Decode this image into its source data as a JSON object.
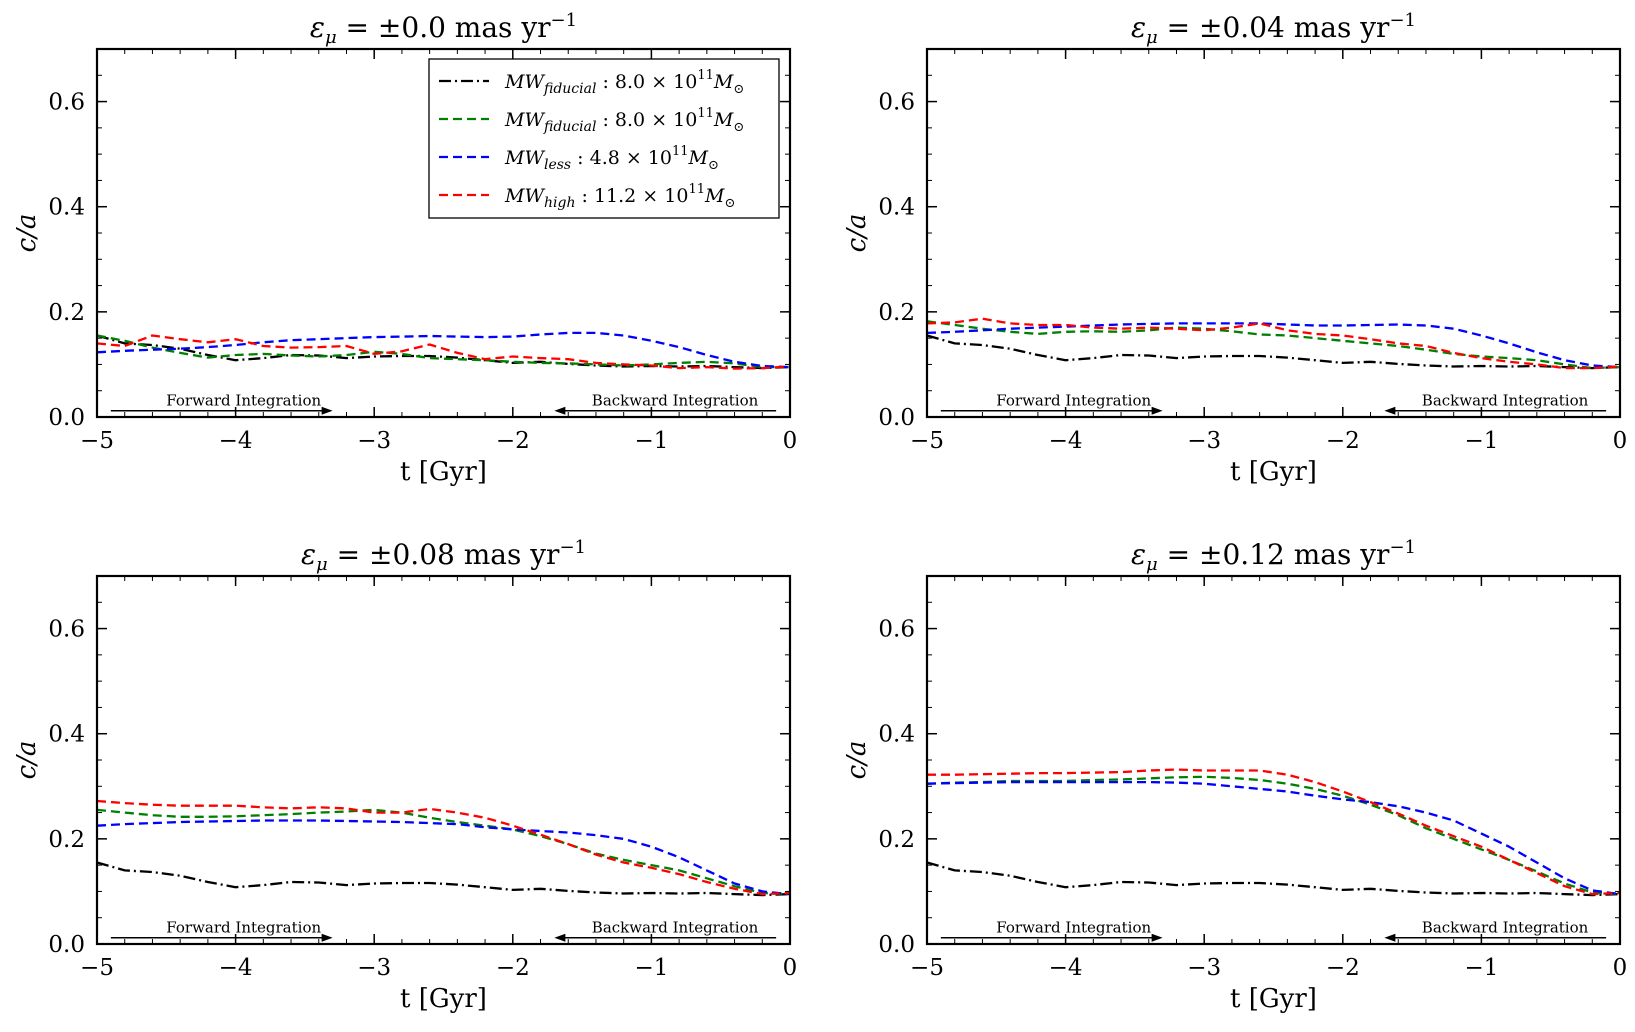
{
  "figure": {
    "legend": {
      "placement": "upper-right of first panel",
      "entries": [
        {
          "label": "MW",
          "sub": "fiducial",
          "rest": " : 8.0 × 10",
          "exp": "11",
          "unit": "M",
          "unit_sub": "⊙",
          "color": "#000000",
          "style": "dashdot"
        },
        {
          "label": "MW",
          "sub": "fiducial",
          "rest": " : 8.0 × 10",
          "exp": "11",
          "unit": "M",
          "unit_sub": "⊙",
          "color": "#008000",
          "style": "dashed"
        },
        {
          "label": "MW",
          "sub": "less",
          "rest": " : 4.8 × 10",
          "exp": "11",
          "unit": "M",
          "unit_sub": "⊙",
          "color": "#0000ff",
          "style": "dashed"
        },
        {
          "label": "MW",
          "sub": "high",
          "rest": " : 11.2 × 10",
          "exp": "11",
          "unit": "M",
          "unit_sub": "⊙",
          "color": "#ff0000",
          "style": "dashed"
        }
      ]
    },
    "annotations": {
      "forward": "Forward Integration",
      "backward": "Backward Integration"
    }
  },
  "chart_data": [
    {
      "type": "line",
      "title_prefix": "ε",
      "title_sub": "μ",
      "title_main": " = ±0.0 mas yr",
      "title_sup": "−1",
      "xlabel": "t [Gyr]",
      "ylabel": "c/a",
      "xlim": [
        -5,
        0
      ],
      "ylim": [
        0,
        0.7
      ],
      "xticks": [
        -5,
        -4,
        -3,
        -2,
        -1,
        0
      ],
      "xtick_labels": [
        "−5",
        "−4",
        "−3",
        "−2",
        "−1",
        "0"
      ],
      "yticks": [
        0.0,
        0.2,
        0.4,
        0.6
      ],
      "ytick_labels": [
        "0.0",
        "0.2",
        "0.4",
        "0.6"
      ],
      "grid": false,
      "x": [
        -5.0,
        -4.8,
        -4.6,
        -4.4,
        -4.2,
        -4.0,
        -3.8,
        -3.6,
        -3.4,
        -3.2,
        -3.0,
        -2.8,
        -2.6,
        -2.4,
        -2.2,
        -2.0,
        -1.8,
        -1.6,
        -1.4,
        -1.2,
        -1.0,
        -0.8,
        -0.6,
        -0.4,
        -0.2,
        0.0
      ],
      "series": [
        {
          "color": "#000000",
          "style": "dashdot",
          "values": [
            0.155,
            0.14,
            0.137,
            0.13,
            0.118,
            0.108,
            0.112,
            0.118,
            0.117,
            0.112,
            0.115,
            0.116,
            0.116,
            0.113,
            0.108,
            0.103,
            0.105,
            0.101,
            0.098,
            0.096,
            0.097,
            0.096,
            0.097,
            0.095,
            0.093,
            0.095
          ]
        },
        {
          "color": "#008000",
          "style": "dashed",
          "values": [
            0.155,
            0.145,
            0.132,
            0.122,
            0.113,
            0.118,
            0.12,
            0.117,
            0.115,
            0.118,
            0.124,
            0.12,
            0.112,
            0.11,
            0.108,
            0.105,
            0.103,
            0.102,
            0.1,
            0.098,
            0.1,
            0.103,
            0.105,
            0.102,
            0.095,
            0.095
          ]
        },
        {
          "color": "#0000ff",
          "style": "dashed",
          "values": [
            0.123,
            0.126,
            0.128,
            0.13,
            0.133,
            0.137,
            0.142,
            0.146,
            0.148,
            0.15,
            0.152,
            0.153,
            0.154,
            0.153,
            0.152,
            0.153,
            0.157,
            0.16,
            0.16,
            0.155,
            0.145,
            0.133,
            0.118,
            0.105,
            0.097,
            0.095
          ]
        },
        {
          "color": "#ff0000",
          "style": "dashed",
          "values": [
            0.14,
            0.135,
            0.155,
            0.148,
            0.142,
            0.148,
            0.135,
            0.132,
            0.133,
            0.135,
            0.12,
            0.125,
            0.138,
            0.122,
            0.11,
            0.115,
            0.112,
            0.11,
            0.103,
            0.1,
            0.098,
            0.093,
            0.095,
            0.092,
            0.093,
            0.096
          ]
        }
      ],
      "annotations": [
        "Forward Integration",
        "Backward Integration"
      ]
    },
    {
      "type": "line",
      "title_prefix": "ε",
      "title_sub": "μ",
      "title_main": " = ±0.04 mas yr",
      "title_sup": "−1",
      "xlabel": "t [Gyr]",
      "ylabel": "c/a",
      "xlim": [
        -5,
        0
      ],
      "ylim": [
        0,
        0.7
      ],
      "xticks": [
        -5,
        -4,
        -3,
        -2,
        -1,
        0
      ],
      "xtick_labels": [
        "−5",
        "−4",
        "−3",
        "−2",
        "−1",
        "0"
      ],
      "yticks": [
        0.0,
        0.2,
        0.4,
        0.6
      ],
      "ytick_labels": [
        "0.0",
        "0.2",
        "0.4",
        "0.6"
      ],
      "grid": false,
      "x": [
        -5.0,
        -4.8,
        -4.6,
        -4.4,
        -4.2,
        -4.0,
        -3.8,
        -3.6,
        -3.4,
        -3.2,
        -3.0,
        -2.8,
        -2.6,
        -2.4,
        -2.2,
        -2.0,
        -1.8,
        -1.6,
        -1.4,
        -1.2,
        -1.0,
        -0.8,
        -0.6,
        -0.4,
        -0.2,
        0.0
      ],
      "series": [
        {
          "color": "#000000",
          "style": "dashdot",
          "values": [
            0.155,
            0.14,
            0.137,
            0.13,
            0.118,
            0.108,
            0.112,
            0.118,
            0.117,
            0.112,
            0.115,
            0.116,
            0.116,
            0.113,
            0.108,
            0.103,
            0.105,
            0.101,
            0.098,
            0.096,
            0.097,
            0.096,
            0.097,
            0.095,
            0.093,
            0.095
          ]
        },
        {
          "color": "#008000",
          "style": "dashed",
          "values": [
            0.182,
            0.175,
            0.168,
            0.162,
            0.158,
            0.162,
            0.163,
            0.162,
            0.165,
            0.17,
            0.168,
            0.163,
            0.157,
            0.155,
            0.15,
            0.145,
            0.14,
            0.135,
            0.128,
            0.12,
            0.115,
            0.112,
            0.108,
            0.1,
            0.093,
            0.095
          ]
        },
        {
          "color": "#0000ff",
          "style": "dashed",
          "values": [
            0.16,
            0.162,
            0.165,
            0.168,
            0.17,
            0.172,
            0.174,
            0.176,
            0.177,
            0.178,
            0.178,
            0.178,
            0.178,
            0.176,
            0.174,
            0.174,
            0.175,
            0.176,
            0.174,
            0.168,
            0.155,
            0.14,
            0.123,
            0.108,
            0.098,
            0.095
          ]
        },
        {
          "color": "#ff0000",
          "style": "dashed",
          "values": [
            0.178,
            0.18,
            0.187,
            0.178,
            0.175,
            0.175,
            0.17,
            0.168,
            0.17,
            0.168,
            0.165,
            0.17,
            0.178,
            0.165,
            0.158,
            0.155,
            0.148,
            0.14,
            0.135,
            0.122,
            0.112,
            0.105,
            0.1,
            0.093,
            0.093,
            0.096
          ]
        }
      ],
      "annotations": [
        "Forward Integration",
        "Backward Integration"
      ]
    },
    {
      "type": "line",
      "title_prefix": "ε",
      "title_sub": "μ",
      "title_main": " = ±0.08 mas yr",
      "title_sup": "−1",
      "xlabel": "t [Gyr]",
      "ylabel": "c/a",
      "xlim": [
        -5,
        0
      ],
      "ylim": [
        0,
        0.7
      ],
      "xticks": [
        -5,
        -4,
        -3,
        -2,
        -1,
        0
      ],
      "xtick_labels": [
        "−5",
        "−4",
        "−3",
        "−2",
        "−1",
        "0"
      ],
      "yticks": [
        0.0,
        0.2,
        0.4,
        0.6
      ],
      "ytick_labels": [
        "0.0",
        "0.2",
        "0.4",
        "0.6"
      ],
      "grid": false,
      "x": [
        -5.0,
        -4.8,
        -4.6,
        -4.4,
        -4.2,
        -4.0,
        -3.8,
        -3.6,
        -3.4,
        -3.2,
        -3.0,
        -2.8,
        -2.6,
        -2.4,
        -2.2,
        -2.0,
        -1.8,
        -1.6,
        -1.4,
        -1.2,
        -1.0,
        -0.8,
        -0.6,
        -0.4,
        -0.2,
        0.0
      ],
      "series": [
        {
          "color": "#000000",
          "style": "dashdot",
          "values": [
            0.155,
            0.14,
            0.137,
            0.13,
            0.118,
            0.108,
            0.112,
            0.118,
            0.117,
            0.112,
            0.115,
            0.116,
            0.116,
            0.113,
            0.108,
            0.103,
            0.105,
            0.101,
            0.098,
            0.096,
            0.097,
            0.096,
            0.097,
            0.095,
            0.093,
            0.095
          ]
        },
        {
          "color": "#008000",
          "style": "dashed",
          "values": [
            0.255,
            0.25,
            0.245,
            0.242,
            0.242,
            0.243,
            0.245,
            0.247,
            0.25,
            0.252,
            0.255,
            0.25,
            0.24,
            0.232,
            0.225,
            0.218,
            0.205,
            0.19,
            0.172,
            0.16,
            0.15,
            0.14,
            0.125,
            0.11,
            0.097,
            0.095
          ]
        },
        {
          "color": "#0000ff",
          "style": "dashed",
          "values": [
            0.225,
            0.228,
            0.23,
            0.232,
            0.233,
            0.234,
            0.235,
            0.235,
            0.235,
            0.234,
            0.233,
            0.232,
            0.23,
            0.228,
            0.222,
            0.218,
            0.215,
            0.212,
            0.207,
            0.2,
            0.185,
            0.165,
            0.14,
            0.115,
            0.1,
            0.095
          ]
        },
        {
          "color": "#ff0000",
          "style": "dashed",
          "values": [
            0.272,
            0.268,
            0.265,
            0.263,
            0.263,
            0.263,
            0.26,
            0.258,
            0.26,
            0.258,
            0.25,
            0.25,
            0.257,
            0.25,
            0.24,
            0.225,
            0.208,
            0.19,
            0.17,
            0.155,
            0.145,
            0.133,
            0.118,
            0.105,
            0.095,
            0.097
          ]
        }
      ],
      "annotations": [
        "Forward Integration",
        "Backward Integration"
      ]
    },
    {
      "type": "line",
      "title_prefix": "ε",
      "title_sub": "μ",
      "title_main": " = ±0.12 mas yr",
      "title_sup": "−1",
      "xlabel": "t [Gyr]",
      "ylabel": "c/a",
      "xlim": [
        -5,
        0
      ],
      "ylim": [
        0,
        0.7
      ],
      "xticks": [
        -5,
        -4,
        -3,
        -2,
        -1,
        0
      ],
      "xtick_labels": [
        "−5",
        "−4",
        "−3",
        "−2",
        "−1",
        "0"
      ],
      "yticks": [
        0.0,
        0.2,
        0.4,
        0.6
      ],
      "ytick_labels": [
        "0.0",
        "0.2",
        "0.4",
        "0.6"
      ],
      "grid": false,
      "x": [
        -5.0,
        -4.8,
        -4.6,
        -4.4,
        -4.2,
        -4.0,
        -3.8,
        -3.6,
        -3.4,
        -3.2,
        -3.0,
        -2.8,
        -2.6,
        -2.4,
        -2.2,
        -2.0,
        -1.8,
        -1.6,
        -1.4,
        -1.2,
        -1.0,
        -0.8,
        -0.6,
        -0.4,
        -0.2,
        0.0
      ],
      "series": [
        {
          "color": "#000000",
          "style": "dashdot",
          "values": [
            0.155,
            0.14,
            0.137,
            0.13,
            0.118,
            0.108,
            0.112,
            0.118,
            0.117,
            0.112,
            0.115,
            0.116,
            0.116,
            0.113,
            0.108,
            0.103,
            0.105,
            0.101,
            0.098,
            0.096,
            0.097,
            0.096,
            0.097,
            0.095,
            0.093,
            0.095
          ]
        },
        {
          "color": "#008000",
          "style": "dashed",
          "values": [
            0.305,
            0.307,
            0.308,
            0.31,
            0.31,
            0.31,
            0.312,
            0.313,
            0.315,
            0.317,
            0.318,
            0.316,
            0.312,
            0.305,
            0.295,
            0.282,
            0.265,
            0.245,
            0.22,
            0.2,
            0.18,
            0.16,
            0.138,
            0.115,
            0.098,
            0.095
          ]
        },
        {
          "color": "#0000ff",
          "style": "dashed",
          "values": [
            0.305,
            0.306,
            0.307,
            0.308,
            0.308,
            0.308,
            0.308,
            0.308,
            0.308,
            0.307,
            0.305,
            0.3,
            0.295,
            0.29,
            0.282,
            0.275,
            0.27,
            0.262,
            0.25,
            0.235,
            0.21,
            0.185,
            0.155,
            0.125,
            0.102,
            0.095
          ]
        },
        {
          "color": "#ff0000",
          "style": "dashed",
          "values": [
            0.322,
            0.322,
            0.323,
            0.324,
            0.325,
            0.325,
            0.326,
            0.327,
            0.33,
            0.332,
            0.33,
            0.33,
            0.33,
            0.322,
            0.308,
            0.29,
            0.27,
            0.248,
            0.225,
            0.205,
            0.185,
            0.16,
            0.135,
            0.11,
            0.095,
            0.097
          ]
        }
      ],
      "annotations": [
        "Forward Integration",
        "Backward Integration"
      ]
    }
  ]
}
